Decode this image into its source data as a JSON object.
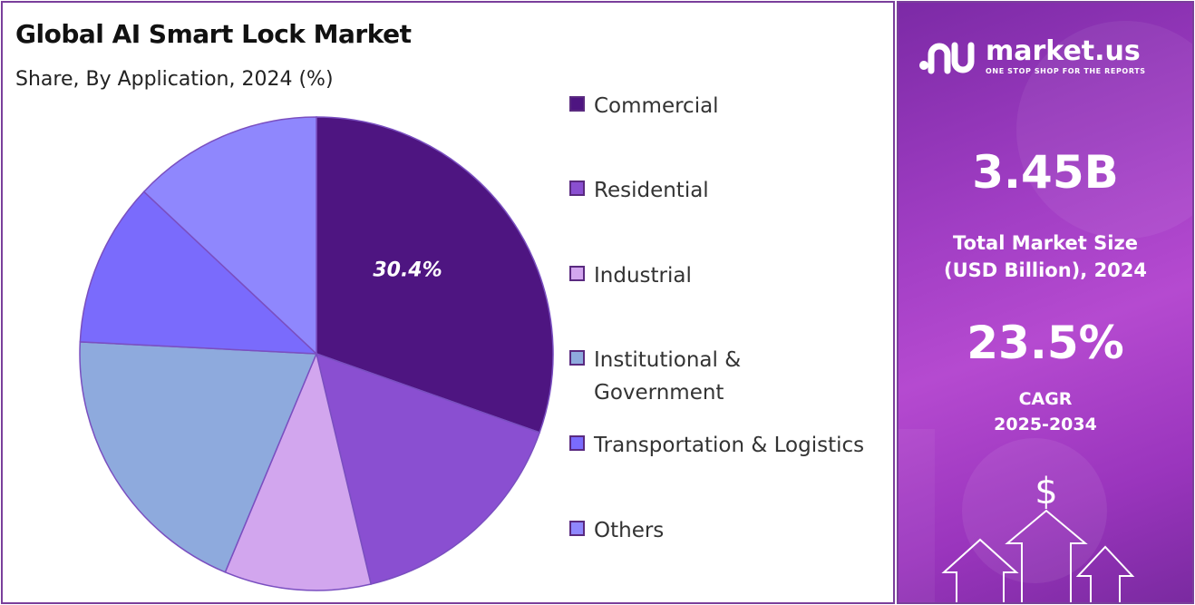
{
  "chart_data": {
    "type": "pie",
    "title": "Global AI Smart Lock Market",
    "subtitle": "Share, By Application, 2024 (%)",
    "categories": [
      "Commercial",
      "Residential",
      "Industrial",
      "Institutional & Government",
      "Transportation & Logistics",
      "Others"
    ],
    "values": [
      30.4,
      15.9,
      10.0,
      19.5,
      11.2,
      13.0
    ],
    "data_labels": [
      "30.4%",
      "",
      "",
      "",
      "",
      ""
    ],
    "colors": [
      "#4e1581",
      "#8a4fd1",
      "#d2a6ee",
      "#8eaadd",
      "#7a6bfc",
      "#8f87fd"
    ],
    "legend_position": "right"
  },
  "legend": {
    "items": [
      {
        "label": "Commercial",
        "color": "#4e1581"
      },
      {
        "label": "Residential",
        "color": "#8a4fd1"
      },
      {
        "label": "Industrial",
        "color": "#d2a6ee"
      },
      {
        "label": "Institutional & Government",
        "color": "#8eaadd"
      },
      {
        "label": "Transportation & Logistics",
        "color": "#7a6bfc"
      },
      {
        "label": "Others",
        "color": "#8f87fd"
      }
    ]
  },
  "side_panel": {
    "brand": {
      "name": "market.us",
      "tagline": "ONE STOP SHOP FOR THE REPORTS",
      "logo_icon": "market-us-logo-icon"
    },
    "market_size": {
      "value": "3.45B",
      "label_line1": "Total Market Size",
      "label_line2": "(USD Billion), 2024"
    },
    "cagr": {
      "value": "23.5%",
      "label_line1": "CAGR",
      "label_line2": "2025-2034"
    },
    "decor_icon": "dollar-arrows-icon",
    "decor_symbol": "$"
  }
}
